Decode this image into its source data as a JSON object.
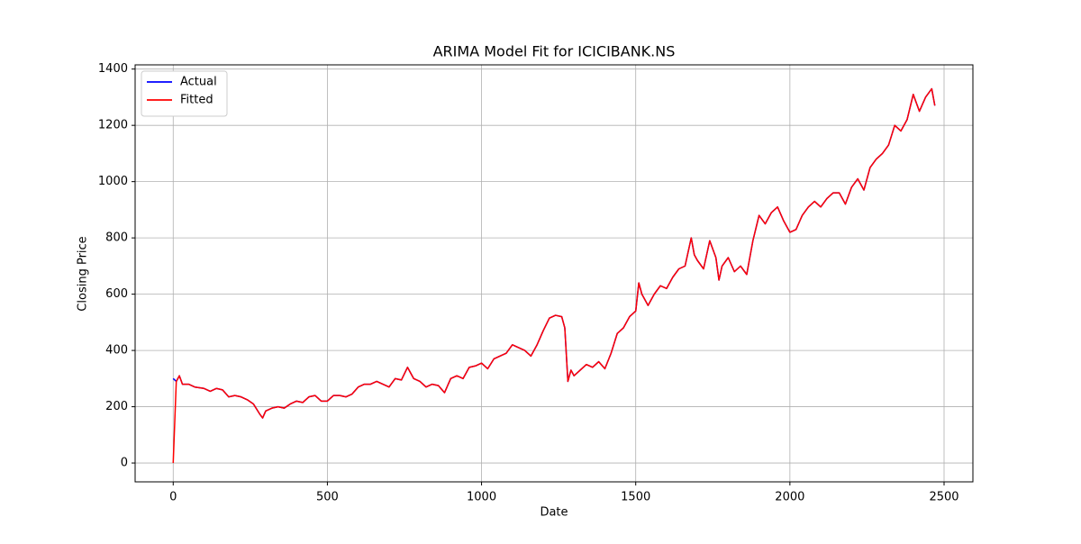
{
  "chart_data": {
    "type": "line",
    "title": "ARIMA Model Fit for ICICIBANK.NS",
    "x_label": "Date",
    "y_label": "Closing Price",
    "x": [
      0,
      10,
      20,
      30,
      50,
      70,
      100,
      120,
      140,
      160,
      180,
      200,
      220,
      240,
      260,
      280,
      290,
      300,
      320,
      340,
      360,
      380,
      400,
      420,
      440,
      460,
      480,
      500,
      520,
      540,
      560,
      580,
      600,
      620,
      640,
      660,
      680,
      700,
      720,
      740,
      760,
      780,
      800,
      820,
      840,
      860,
      880,
      900,
      920,
      940,
      960,
      980,
      1000,
      1020,
      1040,
      1060,
      1080,
      1100,
      1120,
      1140,
      1160,
      1180,
      1200,
      1220,
      1240,
      1260,
      1270,
      1280,
      1290,
      1300,
      1320,
      1340,
      1360,
      1380,
      1400,
      1420,
      1440,
      1460,
      1480,
      1500,
      1510,
      1520,
      1540,
      1560,
      1580,
      1600,
      1620,
      1640,
      1660,
      1680,
      1690,
      1700,
      1720,
      1740,
      1760,
      1770,
      1780,
      1800,
      1820,
      1840,
      1860,
      1880,
      1900,
      1920,
      1940,
      1960,
      1980,
      2000,
      2020,
      2040,
      2060,
      2080,
      2100,
      2120,
      2140,
      2160,
      2180,
      2200,
      2220,
      2240,
      2260,
      2280,
      2300,
      2320,
      2340,
      2360,
      2380,
      2400,
      2420,
      2440,
      2460,
      2470
    ],
    "series": [
      {
        "name": "Actual",
        "color": "#0000ff",
        "values": [
          300,
          290,
          310,
          280,
          280,
          270,
          265,
          255,
          265,
          260,
          235,
          240,
          235,
          225,
          210,
          175,
          160,
          185,
          195,
          200,
          195,
          210,
          220,
          215,
          235,
          240,
          220,
          220,
          240,
          240,
          235,
          245,
          270,
          280,
          280,
          290,
          280,
          270,
          300,
          295,
          340,
          300,
          290,
          270,
          280,
          275,
          250,
          300,
          310,
          300,
          340,
          345,
          355,
          335,
          370,
          380,
          390,
          420,
          410,
          400,
          380,
          420,
          470,
          515,
          525,
          520,
          480,
          290,
          330,
          310,
          330,
          350,
          340,
          360,
          335,
          390,
          460,
          480,
          520,
          540,
          640,
          600,
          560,
          600,
          630,
          620,
          660,
          690,
          700,
          800,
          740,
          720,
          690,
          790,
          730,
          650,
          700,
          730,
          680,
          700,
          670,
          790,
          880,
          850,
          890,
          910,
          860,
          820,
          830,
          880,
          910,
          930,
          910,
          940,
          960,
          960,
          920,
          980,
          1010,
          970,
          1050,
          1080,
          1100,
          1130,
          1200,
          1180,
          1220,
          1310,
          1250,
          1300,
          1330,
          1270
        ]
      },
      {
        "name": "Fitted",
        "color": "#ff0000",
        "values": [
          0,
          290,
          310,
          280,
          280,
          270,
          265,
          255,
          265,
          260,
          235,
          240,
          235,
          225,
          210,
          175,
          160,
          185,
          195,
          200,
          195,
          210,
          220,
          215,
          235,
          240,
          220,
          220,
          240,
          240,
          235,
          245,
          270,
          280,
          280,
          290,
          280,
          270,
          300,
          295,
          340,
          300,
          290,
          270,
          280,
          275,
          250,
          300,
          310,
          300,
          340,
          345,
          355,
          335,
          370,
          380,
          390,
          420,
          410,
          400,
          380,
          420,
          470,
          515,
          525,
          520,
          480,
          290,
          330,
          310,
          330,
          350,
          340,
          360,
          335,
          390,
          460,
          480,
          520,
          540,
          640,
          600,
          560,
          600,
          630,
          620,
          660,
          690,
          700,
          800,
          740,
          720,
          690,
          790,
          730,
          650,
          700,
          730,
          680,
          700,
          670,
          790,
          880,
          850,
          890,
          910,
          860,
          820,
          830,
          880,
          910,
          930,
          910,
          940,
          960,
          960,
          920,
          980,
          1010,
          970,
          1050,
          1080,
          1100,
          1130,
          1200,
          1180,
          1220,
          1310,
          1250,
          1300,
          1330,
          1270
        ]
      }
    ],
    "xlim": [
      -123.5,
      2593.5
    ],
    "xticks": [
      0,
      500,
      1000,
      1500,
      2000,
      2500
    ],
    "ylim": [
      -67,
      1415
    ],
    "yticks": [
      0,
      200,
      400,
      600,
      800,
      1000,
      1200,
      1400
    ],
    "grid": true,
    "legend": "upper-left"
  }
}
